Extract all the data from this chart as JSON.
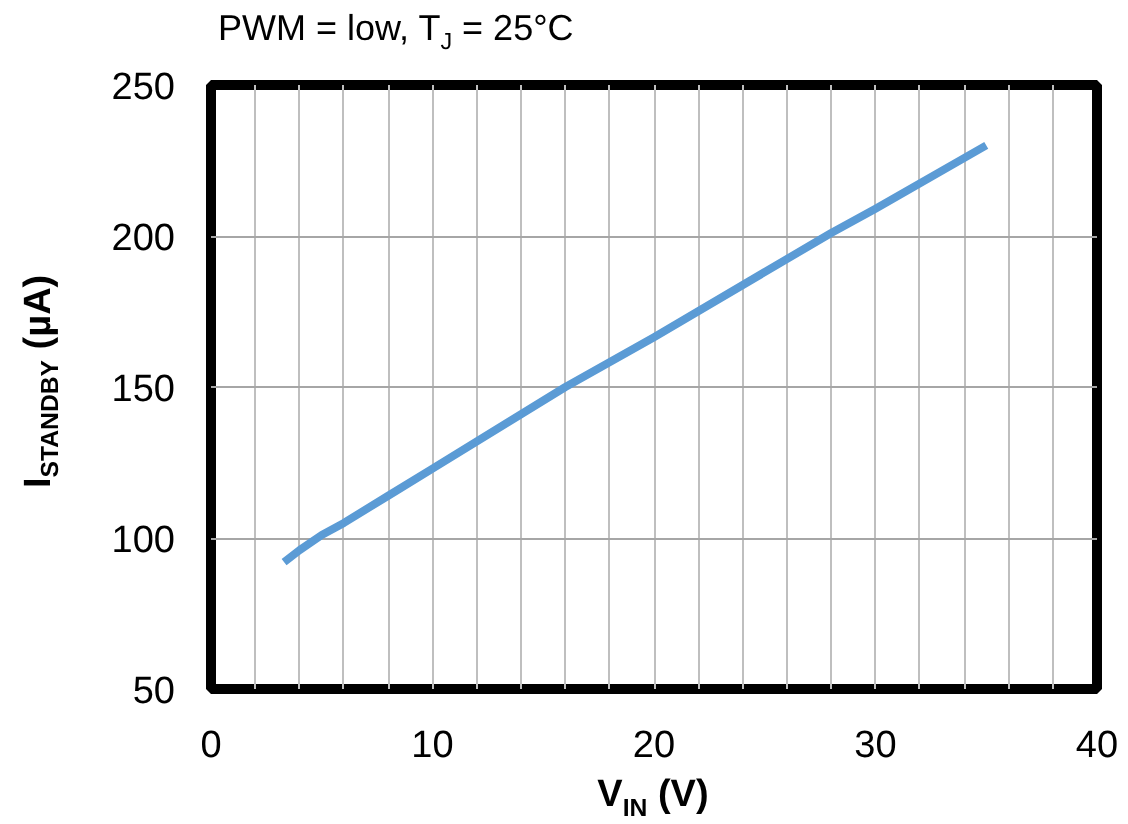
{
  "chart_data": {
    "type": "line",
    "subtitle": "PWM = low, T$_{J}$ = 25°C",
    "xlabel": "V$_{IN}$ (V)",
    "ylabel": "I$_{STANDBY}$ (µA)",
    "series": [
      {
        "color": "#5b9bd5",
        "x": [
          3.3,
          4,
          5,
          6,
          8,
          10,
          16,
          20,
          28,
          30,
          35
        ],
        "values": [
          92,
          96,
          101,
          105,
          114,
          123,
          150,
          166.5,
          201,
          209,
          230
        ]
      }
    ],
    "xlim": [
      0,
      40
    ],
    "ylim": [
      50,
      250
    ],
    "xticks": [
      0,
      {
        "value": 2,
        "label": null
      },
      {
        "value": 4,
        "label": null
      },
      {
        "value": 6,
        "label": null
      },
      {
        "value": 8,
        "label": null
      },
      10,
      {
        "value": 12,
        "label": null
      },
      {
        "value": 14,
        "label": null
      },
      {
        "value": 16,
        "label": null
      },
      {
        "value": 18,
        "label": null
      },
      20,
      {
        "value": 22,
        "label": null
      },
      {
        "value": 24,
        "label": null
      },
      {
        "value": 26,
        "label": null
      },
      {
        "value": 28,
        "label": null
      },
      30,
      {
        "value": 32,
        "label": null
      },
      {
        "value": 34,
        "label": null
      },
      {
        "value": 36,
        "label": null
      },
      {
        "value": 38,
        "label": null
      },
      40
    ],
    "yticks": [
      50,
      100,
      150,
      200,
      250
    ],
    "grid": true,
    "marker": "none",
    "line_style": "solid"
  }
}
